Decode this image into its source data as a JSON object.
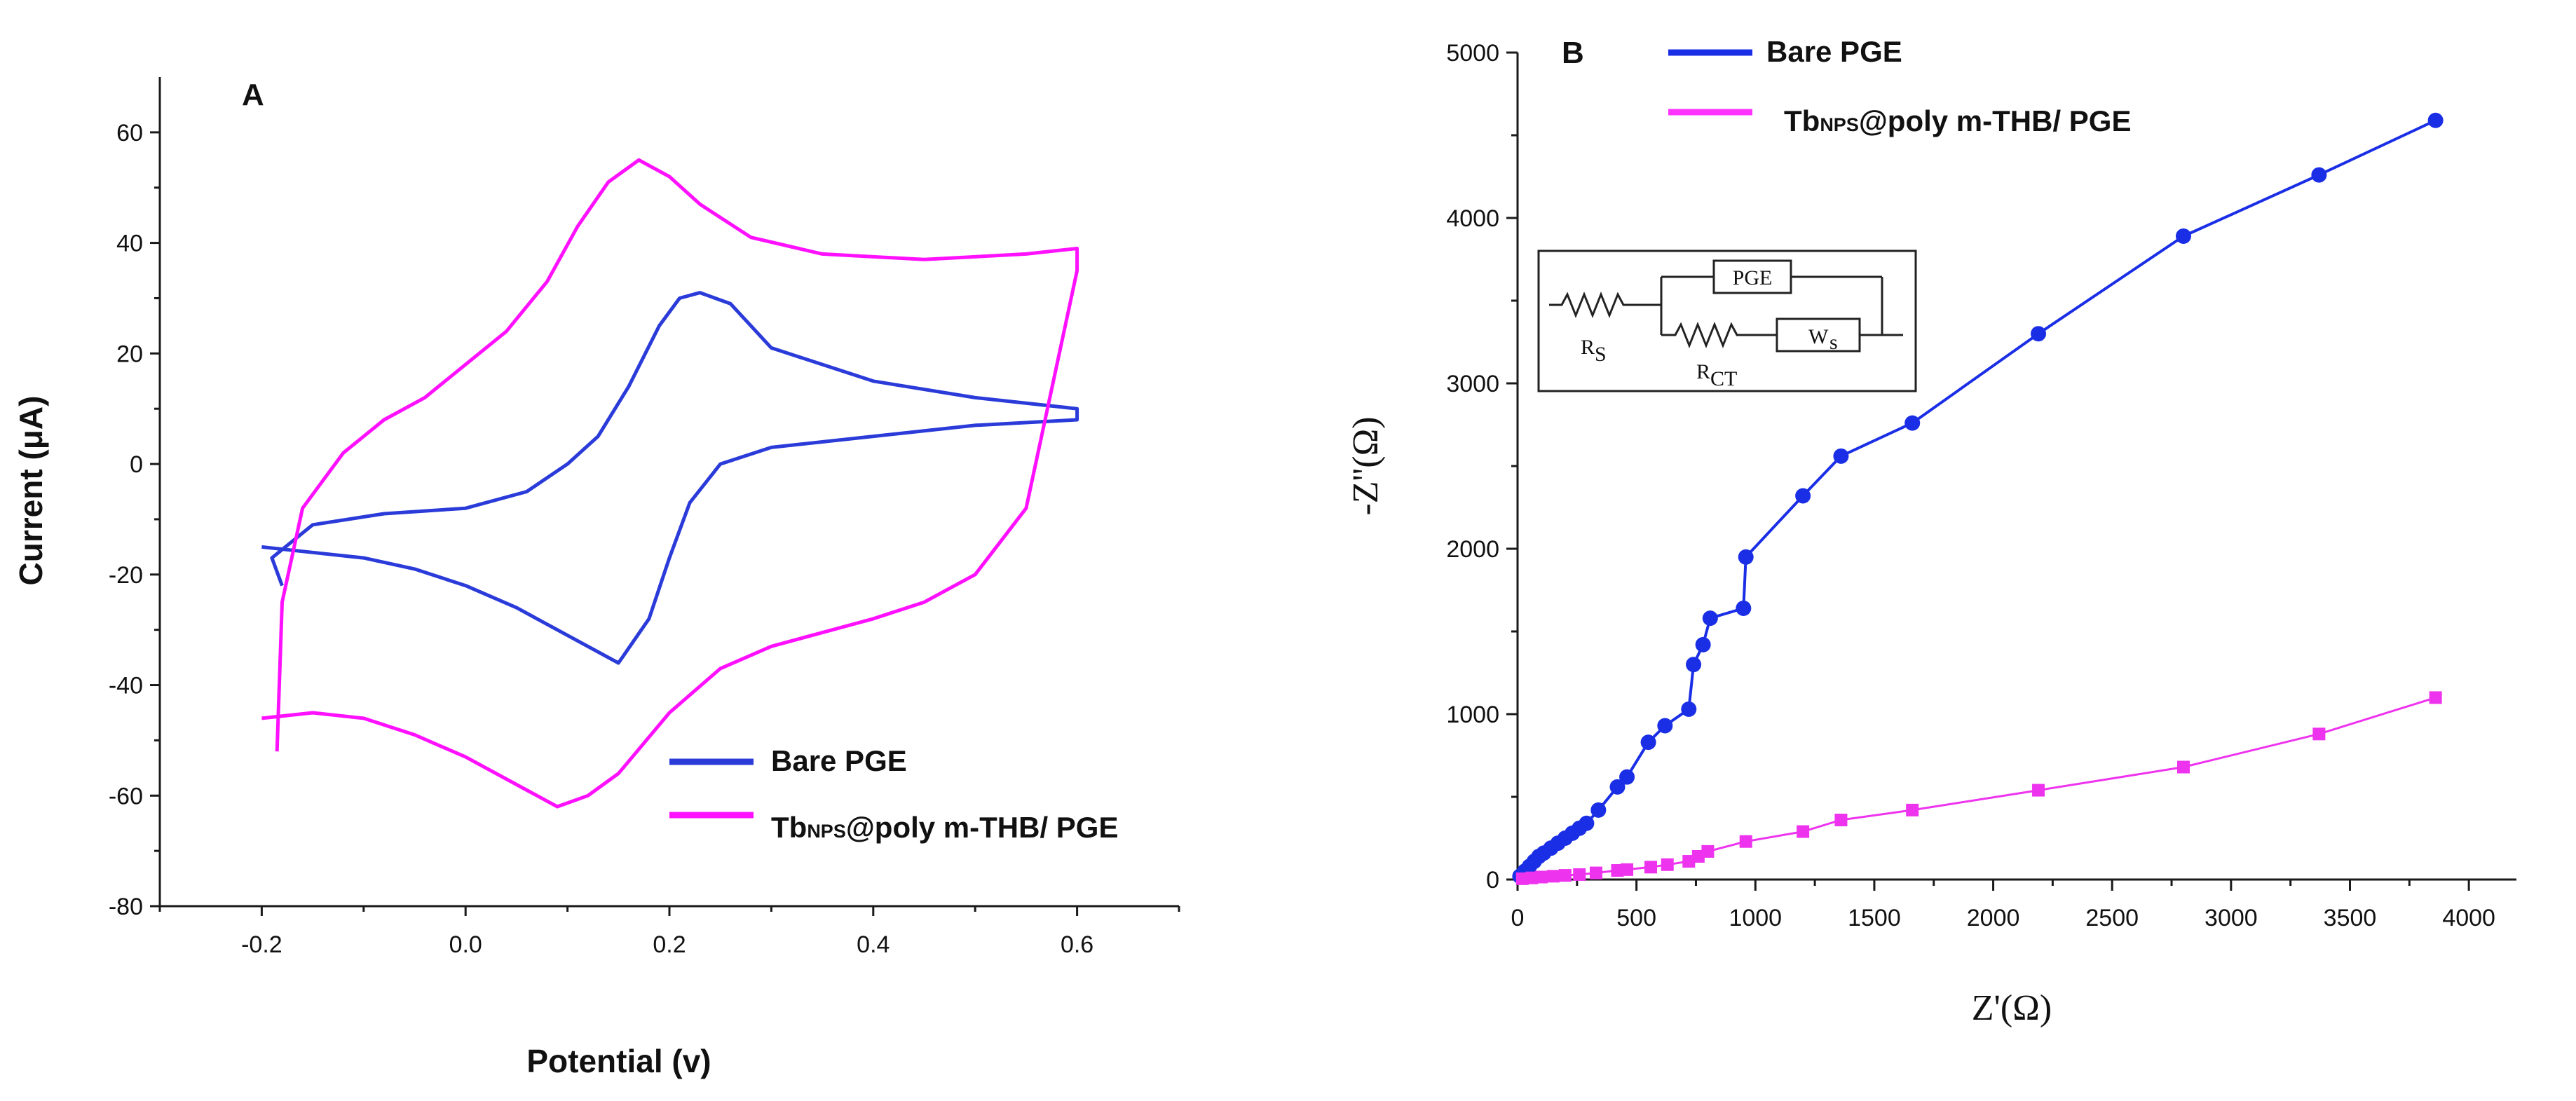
{
  "chart_data": [
    {
      "type": "line",
      "panel_label": "A",
      "title": "",
      "xlabel": "Potential (v)",
      "ylabel": "Current (μA)",
      "xlim": [
        -0.3,
        0.7
      ],
      "ylim": [
        -80,
        70
      ],
      "x_ticks": [
        "-0.2",
        "0.0",
        "0.2",
        "0.4",
        "0.6"
      ],
      "y_ticks": [
        "-80",
        "-60",
        "-40",
        "-20",
        "0",
        "20",
        "40",
        "60"
      ],
      "grid": false,
      "legend_position": "bottom-right",
      "series": [
        {
          "name": "Bare PGE",
          "color": "#2b3bd9",
          "x": [
            -0.18,
            -0.19,
            -0.15,
            -0.08,
            0.0,
            0.06,
            0.1,
            0.13,
            0.16,
            0.19,
            0.21,
            0.23,
            0.26,
            0.3,
            0.4,
            0.5,
            0.6,
            0.6,
            0.5,
            0.4,
            0.3,
            0.25,
            0.22,
            0.2,
            0.18,
            0.15,
            0.1,
            0.05,
            0.0,
            -0.05,
            -0.1,
            -0.15,
            -0.2
          ],
          "y": [
            -22,
            -17,
            -11,
            -9,
            -8,
            -5,
            0,
            5,
            14,
            25,
            30,
            31,
            29,
            21,
            15,
            12,
            10,
            8,
            7,
            5,
            3,
            0,
            -7,
            -17,
            -28,
            -36,
            -31,
            -26,
            -22,
            -19,
            -17,
            -16,
            -15
          ]
        },
        {
          "name": "Tb NPS @poly m-THB/ PGE",
          "color": "#ff10ff",
          "x": [
            -0.185,
            -0.18,
            -0.16,
            -0.12,
            -0.08,
            -0.04,
            0.0,
            0.04,
            0.08,
            0.11,
            0.14,
            0.17,
            0.2,
            0.23,
            0.28,
            0.35,
            0.45,
            0.55,
            0.6,
            0.6,
            0.55,
            0.5,
            0.45,
            0.4,
            0.3,
            0.25,
            0.2,
            0.15,
            0.12,
            0.09,
            0.05,
            0.0,
            -0.05,
            -0.1,
            -0.15,
            -0.2
          ],
          "y": [
            -52,
            -25,
            -8,
            2,
            8,
            12,
            18,
            24,
            33,
            43,
            51,
            55,
            52,
            47,
            41,
            38,
            37,
            38,
            39,
            35,
            -8,
            -20,
            -25,
            -28,
            -33,
            -37,
            -45,
            -56,
            -60,
            -62,
            -58,
            -53,
            -49,
            -46,
            -45,
            -46
          ]
        }
      ]
    },
    {
      "type": "line",
      "panel_label": "B",
      "title": "",
      "xlabel": "Z'(Ω)",
      "ylabel": "-Z''(Ω)",
      "xlim": [
        0,
        4200
      ],
      "ylim": [
        0,
        5000
      ],
      "x_ticks": [
        "0",
        "500",
        "1000",
        "1500",
        "2000",
        "2500",
        "3000",
        "3500",
        "4000"
      ],
      "y_ticks": [
        "0",
        "1000",
        "2000",
        "3000",
        "4000",
        "5000"
      ],
      "grid": false,
      "legend_position": "top-left",
      "series": [
        {
          "name": "Bare PGE",
          "color": "#1a2ee6",
          "marker": "circle",
          "x": [
            10,
            30,
            50,
            70,
            90,
            110,
            140,
            170,
            200,
            230,
            260,
            290,
            340,
            420,
            460,
            550,
            620,
            720,
            740,
            780,
            810,
            950,
            960,
            1200,
            1360,
            1660,
            2190,
            2800,
            3370,
            3860
          ],
          "y": [
            20,
            50,
            80,
            110,
            140,
            160,
            190,
            220,
            250,
            280,
            310,
            340,
            420,
            560,
            620,
            830,
            930,
            1030,
            1300,
            1420,
            1580,
            1640,
            1950,
            2320,
            2560,
            2760,
            3300,
            3890,
            4260,
            4590
          ]
        },
        {
          "name": "Tb NPS @poly m-THB/ PGE",
          "color": "#ee33ee",
          "marker": "square",
          "x": [
            20,
            60,
            100,
            150,
            200,
            260,
            330,
            420,
            460,
            560,
            630,
            720,
            760,
            800,
            960,
            1200,
            1360,
            1660,
            2190,
            2800,
            3370,
            3860
          ],
          "y": [
            5,
            10,
            15,
            20,
            25,
            30,
            40,
            55,
            60,
            75,
            90,
            110,
            140,
            170,
            230,
            290,
            360,
            420,
            540,
            680,
            880,
            1100
          ]
        }
      ],
      "inset_circuit": {
        "labels": [
          "R",
          "S",
          "PGE",
          "R",
          "CT",
          "W",
          "s"
        ]
      }
    }
  ]
}
